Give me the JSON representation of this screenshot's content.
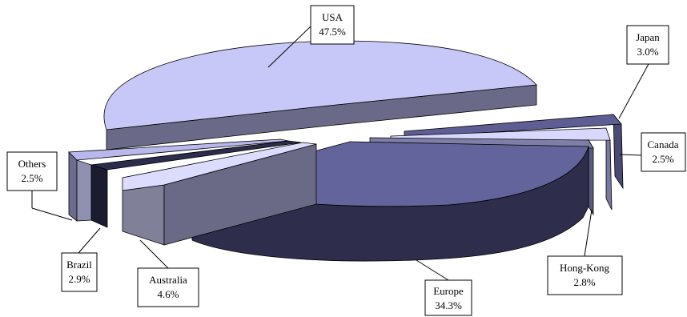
{
  "chart_data": {
    "type": "pie",
    "style": "3d-exploded",
    "title": "",
    "legend": "none",
    "slices": [
      {
        "label": "USA",
        "value": 47.5,
        "value_label": "47.5%",
        "top_color": "#c8c8f8",
        "side_color": "#6a6a88"
      },
      {
        "label": "Japan",
        "value": 3.0,
        "value_label": "3.0%",
        "top_color": "#5e5e94",
        "side_color": "#4a4a72"
      },
      {
        "label": "Canada",
        "value": 2.5,
        "value_label": "2.5%",
        "top_color": "#d8d8ff",
        "side_color": "#7878a0"
      },
      {
        "label": "Hong-Kong",
        "value": 2.8,
        "value_label": "2.8%",
        "top_color": "#7e7ea6",
        "side_color": "#5a5a7c"
      },
      {
        "label": "Europe",
        "value": 34.3,
        "value_label": "34.3%",
        "top_color": "#64649c",
        "side_color": "#2e2e4c"
      },
      {
        "label": "Australia",
        "value": 4.6,
        "value_label": "4.6%",
        "top_color": "#dcdcff",
        "side_color": "#808098"
      },
      {
        "label": "Brazil",
        "value": 2.9,
        "value_label": "2.9%",
        "top_color": "#2c2c4c",
        "side_color": "#1c1c30"
      },
      {
        "label": "Others",
        "value": 2.5,
        "value_label": "2.5%",
        "top_color": "#b8b8ec",
        "side_color": "#6c6c8c"
      }
    ]
  }
}
